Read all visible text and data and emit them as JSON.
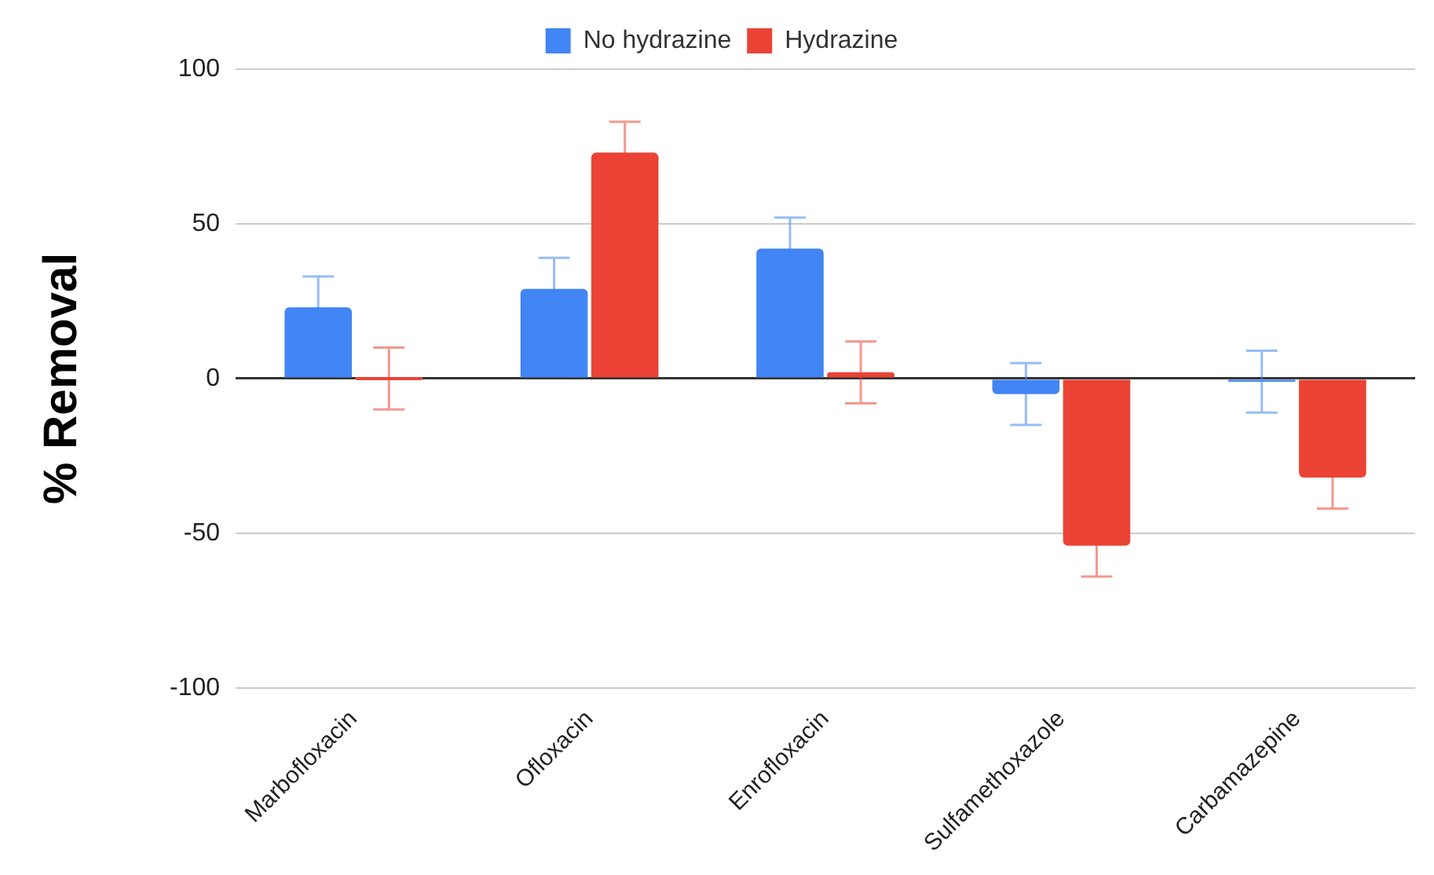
{
  "chart_data": {
    "type": "bar",
    "ylabel": "% Removal",
    "categories": [
      "Marbofloxacin",
      "Ofloxacin",
      "Enrofloxacin",
      "Sulfamethoxazole",
      "Carbamazepine"
    ],
    "series": [
      {
        "name": "No hydrazine",
        "color": "#4285f4",
        "values": [
          23,
          29,
          42,
          -5,
          -1
        ],
        "errors": [
          10,
          10,
          10,
          10,
          10
        ]
      },
      {
        "name": "Hydrazine",
        "color": "#ea4335",
        "values": [
          0,
          73,
          2,
          -54,
          -32
        ],
        "errors": [
          10,
          10,
          10,
          10,
          10
        ]
      }
    ],
    "ylim": [
      -100,
      100
    ],
    "yticks": [
      -100,
      -50,
      0,
      50,
      100
    ],
    "grid": "y",
    "legend": "top"
  }
}
